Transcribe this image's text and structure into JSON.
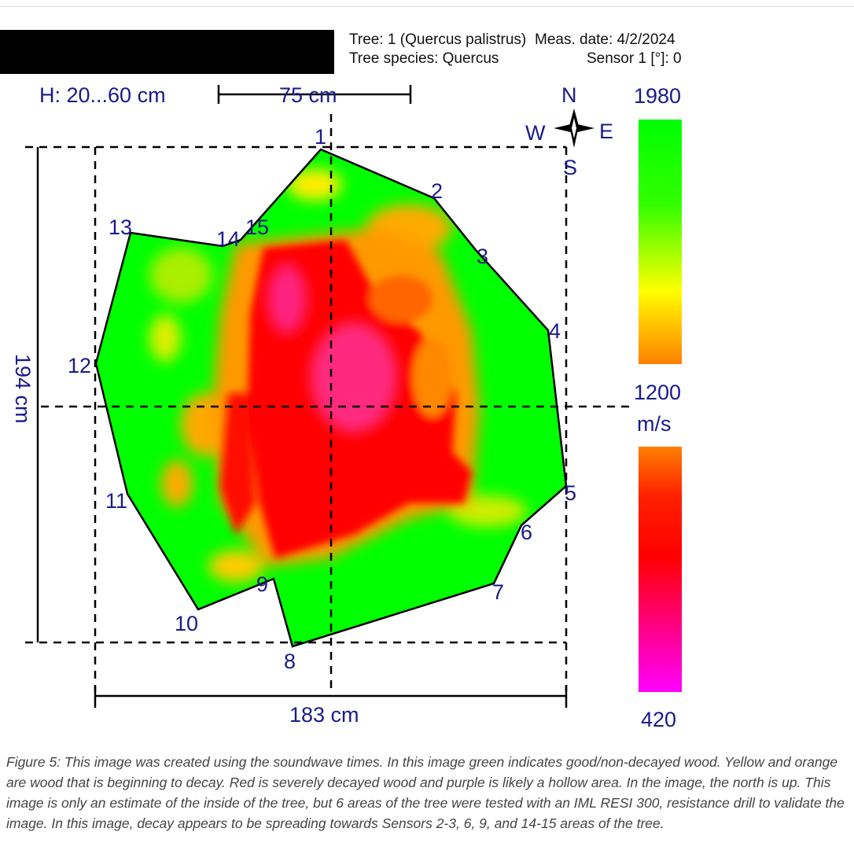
{
  "header": {
    "tree": "Tree: 1 (Quercus palistrus)",
    "meas_date": "Meas. date: 4/2/2024",
    "species": "Tree species: Quercus",
    "sensor": "Sensor 1 [°]: 0"
  },
  "figure": {
    "height_range": "H: 20...60 cm",
    "scale_bar": "75 cm",
    "height_dim": "194 cm",
    "width_dim": "183 cm",
    "compass": {
      "n": "N",
      "s": "S",
      "e": "E",
      "w": "W"
    },
    "sensors": [
      "1",
      "2",
      "3",
      "4",
      "5",
      "6",
      "7",
      "8",
      "9",
      "10",
      "11",
      "12",
      "13",
      "14",
      "15"
    ],
    "legend": {
      "top_max": "1980",
      "top_min": "1200",
      "unit": "m/s",
      "bottom_min": "420",
      "colors": {
        "good": "#00ff00",
        "mid": "#ffff00",
        "early_decay": "#ff8000",
        "decay": "#ff0000",
        "hollow": "#ff00ff"
      }
    }
  },
  "caption": "Figure 5: This image was created using the soundwave times. In this image green indicates good/non-decayed wood. Yellow and orange are wood that is beginning to decay. Red is severely decayed wood and purple is likely a hollow area. In the image, the north is up. This image is only an estimate of the inside of the tree, but 6 areas of the tree were tested with an IML RESI 300, resistance drill to validate the image. In this image, decay appears to be spreading towards Sensors 2-3, 6, 9, and 14-15 areas of the tree."
}
